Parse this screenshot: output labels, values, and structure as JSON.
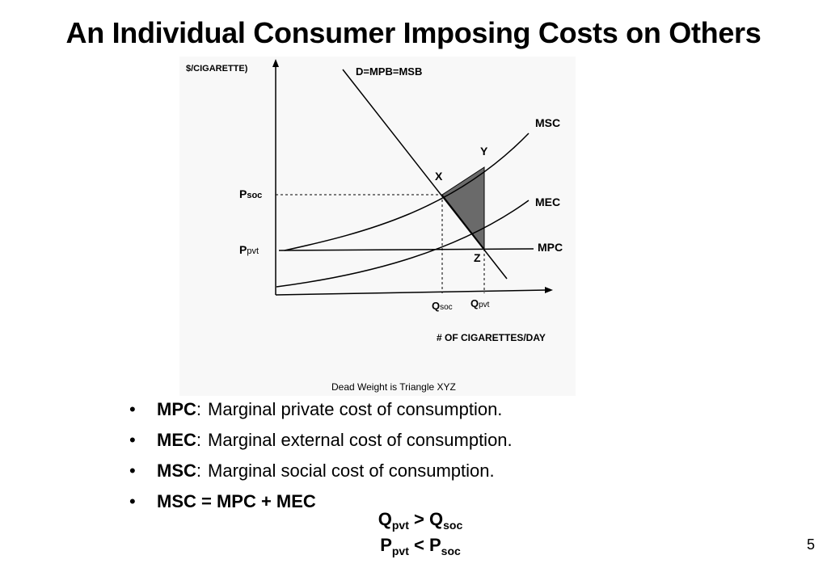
{
  "title": "An Individual Consumer Imposing Costs on Others",
  "diagram": {
    "y_axis_label": "$/CIGARETTE)",
    "x_axis_label": "# OF CIGARETTES/DAY",
    "caption": "Dead Weight is Triangle XYZ",
    "curves": {
      "demand": "D=MPB=MSB",
      "msc": "MSC",
      "mec": "MEC",
      "mpc": "MPC"
    },
    "points": {
      "x": "X",
      "y": "Y",
      "z": "Z"
    },
    "price_ticks": {
      "soc": {
        "main": "P",
        "sub": "soc"
      },
      "pvt": {
        "main": "P",
        "sub": "pvt"
      }
    },
    "quantity_ticks": {
      "soc": {
        "main": "Q",
        "sub": "soc"
      },
      "pvt": {
        "main": "Q",
        "sub": "pvt"
      }
    },
    "deadweight_fill": "#6a6a6a"
  },
  "bullets": [
    {
      "term": "MPC",
      "sep": ":",
      "text": "Marginal private cost of consumption."
    },
    {
      "term": "MEC",
      "sep": ":",
      "text": "Marginal external cost of consumption."
    },
    {
      "term": "MSC",
      "sep": ":",
      "text": "Marginal social cost of consumption."
    },
    {
      "term": "MSC = MPC + MEC",
      "sep": "",
      "text": ""
    }
  ],
  "bullet_glyph": "•",
  "inequalities": [
    {
      "left": "Q",
      "left_sub": "pvt",
      "op": ">",
      "right": "Q",
      "right_sub": "soc"
    },
    {
      "left": "P",
      "left_sub": "pvt",
      "op": "<",
      "right": "P",
      "right_sub": "soc"
    }
  ],
  "page_number": "5"
}
